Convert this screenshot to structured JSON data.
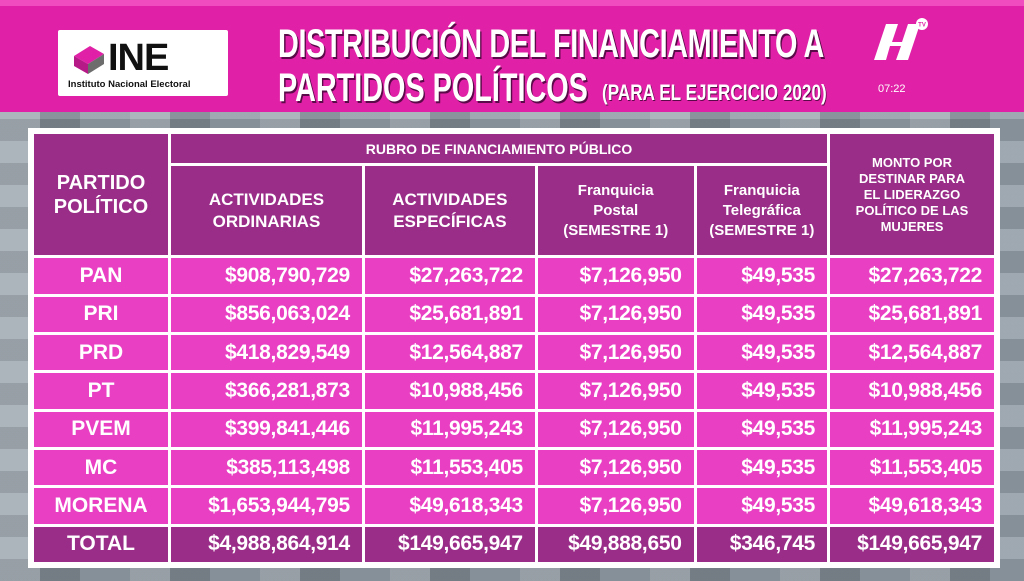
{
  "header": {
    "logo_name": "INE",
    "logo_subtitle": "Instituto Nacional Electoral",
    "title_line1": "DISTRIBUCIÓN DEL FINANCIAMIENTO A",
    "title_line2": "PARTIDOS POLÍTICOS",
    "title_sub": "(PARA EL EJERCICIO 2020)",
    "clock": "07:22",
    "brand_icon": "channel-logo-icon",
    "brand_badge": "TV"
  },
  "colors": {
    "banner": "#e020a6",
    "header_cells": "#9a2d88",
    "body_cells": "#e93fc3"
  },
  "table": {
    "party_header": [
      "PARTIDO",
      "POLÍTICO"
    ],
    "rubro_header": "RUBRO DE FINANCIAMIENTO PÚBLICO",
    "columns": [
      [
        "ACTIVIDADES",
        "ORDINARIAS"
      ],
      [
        "ACTIVIDADES",
        "ESPECÍFICAS"
      ],
      [
        "Franquicia",
        "Postal",
        "(SEMESTRE 1)"
      ],
      [
        "Franquicia",
        "Telegráfica",
        "(SEMESTRE 1)"
      ]
    ],
    "monto_header": [
      "MONTO POR",
      "DESTINAR PARA",
      "EL LIDERAZGO",
      "POLÍTICO DE LAS",
      "MUJERES"
    ],
    "rows": [
      [
        "PAN",
        "$908,790,729",
        "$27,263,722",
        "$7,126,950",
        "$49,535",
        "$27,263,722"
      ],
      [
        "PRI",
        "$856,063,024",
        "$25,681,891",
        "$7,126,950",
        "$49,535",
        "$25,681,891"
      ],
      [
        "PRD",
        "$418,829,549",
        "$12,564,887",
        "$7,126,950",
        "$49,535",
        "$12,564,887"
      ],
      [
        "PT",
        "$366,281,873",
        "$10,988,456",
        "$7,126,950",
        "$49,535",
        "$10,988,456"
      ],
      [
        "PVEM",
        "$399,841,446",
        "$11,995,243",
        "$7,126,950",
        "$49,535",
        "$11,995,243"
      ],
      [
        "MC",
        "$385,113,498",
        "$11,553,405",
        "$7,126,950",
        "$49,535",
        "$11,553,405"
      ],
      [
        "MORENA",
        "$1,653,944,795",
        "$49,618,343",
        "$7,126,950",
        "$49,535",
        "$49,618,343"
      ]
    ],
    "total": [
      "TOTAL",
      "$4,988,864,914",
      "$149,665,947",
      "$49,888,650",
      "$346,745",
      "$149,665,947"
    ]
  }
}
